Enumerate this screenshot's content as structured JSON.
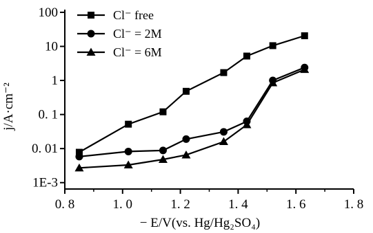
{
  "chart_data": {
    "type": "line",
    "title": "",
    "xlabel": "− E/V(vs. Hg/Hg₂SO₄)",
    "ylabel": "j/A·cm⁻²",
    "xlim": [
      0.8,
      1.8
    ],
    "ylim": [
      0.0005,
      120
    ],
    "y_scale": "log",
    "x_ticks": [
      0.8,
      1.0,
      1.2,
      1.4,
      1.6,
      1.8
    ],
    "x_tick_labels": [
      "0. 8",
      "1. 0",
      "1. 2",
      "1. 4",
      "1. 6",
      "1. 8"
    ],
    "y_ticks": [
      0.001,
      0.01,
      0.1,
      1,
      10,
      100
    ],
    "y_tick_labels": [
      "1E-3",
      "0. 01",
      "0. 1",
      "1",
      "10",
      "100"
    ],
    "grid": false,
    "legend_position": "top-left",
    "series": [
      {
        "name": "Cl⁻ free",
        "marker": "square",
        "x": [
          0.85,
          1.02,
          1.14,
          1.22,
          1.35,
          1.43,
          1.52,
          1.63
        ],
        "y": [
          0.0078,
          0.052,
          0.12,
          0.48,
          1.7,
          5.2,
          10.5,
          20.5
        ]
      },
      {
        "name": "Cl⁻ = 2M",
        "marker": "circle",
        "x": [
          0.85,
          1.02,
          1.14,
          1.22,
          1.35,
          1.43,
          1.52,
          1.63
        ],
        "y": [
          0.0058,
          0.0082,
          0.0088,
          0.019,
          0.031,
          0.063,
          1.0,
          2.4
        ]
      },
      {
        "name": "Cl⁻ = 6M",
        "marker": "triangle",
        "x": [
          0.85,
          1.02,
          1.14,
          1.22,
          1.35,
          1.43,
          1.52,
          1.63
        ],
        "y": [
          0.0027,
          0.0033,
          0.0048,
          0.0065,
          0.016,
          0.05,
          0.85,
          2.1
        ]
      }
    ]
  }
}
